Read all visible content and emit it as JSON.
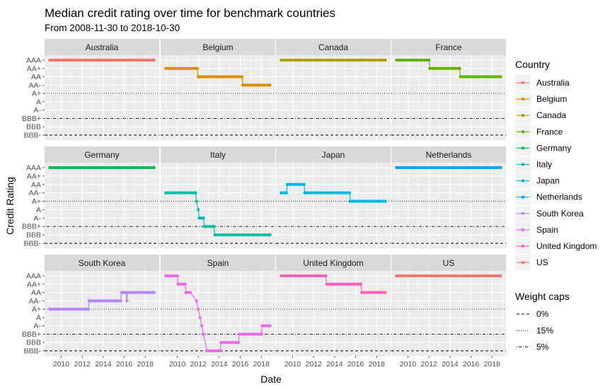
{
  "chart_data": {
    "type": "line",
    "title": "Median credit rating over time for benchmark countries",
    "subtitle": "From 2008-11-30 to 2018-10-30",
    "xlabel": "Date",
    "ylabel": "Credit Rating",
    "x_ticks": [
      "2010",
      "2012",
      "2014",
      "2016",
      "2018"
    ],
    "xlim": [
      "2008-06-01",
      "2019-05-01"
    ],
    "rating_scale": [
      "AAA",
      "AA+",
      "AA",
      "AA-",
      "A+",
      "A",
      "A-",
      "BBB+",
      "BBB",
      "BBB-"
    ],
    "reference_lines": [
      {
        "label": "0%",
        "rating": "BBB-",
        "linetype": "dashed"
      },
      {
        "label": "15%",
        "rating": "A+",
        "linetype": "dotted"
      },
      {
        "label": "5%",
        "rating": "BBB+",
        "linetype": "dotdash"
      }
    ],
    "legend": {
      "position": "right",
      "colour_title": "Country",
      "linetype_title": "Weight caps"
    },
    "series": [
      {
        "name": "Australia",
        "color": "#F8766D",
        "points": [
          [
            "2008-11-30",
            "AAA"
          ],
          [
            "2018-10-30",
            "AAA"
          ]
        ]
      },
      {
        "name": "Belgium",
        "color": "#DB8E00",
        "points": [
          [
            "2008-11-30",
            "AA+"
          ],
          [
            "2011-12-01",
            "AA+"
          ],
          [
            "2011-12-31",
            "AA"
          ],
          [
            "2016-02-28",
            "AA"
          ],
          [
            "2016-03-31",
            "AA-"
          ],
          [
            "2018-10-30",
            "AA-"
          ]
        ]
      },
      {
        "name": "Canada",
        "color": "#AEA200",
        "points": [
          [
            "2008-11-30",
            "AAA"
          ],
          [
            "2018-10-30",
            "AAA"
          ]
        ]
      },
      {
        "name": "France",
        "color": "#64B200",
        "points": [
          [
            "2008-11-30",
            "AAA"
          ],
          [
            "2011-12-31",
            "AAA"
          ],
          [
            "2012-01-31",
            "AA+"
          ],
          [
            "2014-12-01",
            "AA+"
          ],
          [
            "2014-12-31",
            "AA"
          ],
          [
            "2018-10-30",
            "AA"
          ]
        ]
      },
      {
        "name": "Germany",
        "color": "#00BD5C",
        "points": [
          [
            "2008-11-30",
            "AAA"
          ],
          [
            "2018-10-30",
            "AAA"
          ]
        ]
      },
      {
        "name": "Italy",
        "color": "#00C1A7",
        "points": [
          [
            "2008-11-30",
            "AA-"
          ],
          [
            "2011-09-30",
            "AA-"
          ],
          [
            "2011-10-31",
            "A+"
          ],
          [
            "2011-12-31",
            "A"
          ],
          [
            "2012-01-31",
            "A-"
          ],
          [
            "2012-06-30",
            "A-"
          ],
          [
            "2012-07-31",
            "BBB+"
          ],
          [
            "2013-06-30",
            "BBB+"
          ],
          [
            "2013-07-31",
            "BBB"
          ],
          [
            "2018-10-30",
            "BBB"
          ]
        ]
      },
      {
        "name": "Japan",
        "color": "#00BADE",
        "points": [
          [
            "2008-11-30",
            "AA-"
          ],
          [
            "2009-05-31",
            "AA-"
          ],
          [
            "2009-06-30",
            "AA"
          ],
          [
            "2011-01-31",
            "AA"
          ],
          [
            "2011-02-28",
            "AA-"
          ],
          [
            "2015-05-31",
            "AA-"
          ],
          [
            "2015-06-30",
            "A+"
          ],
          [
            "2018-10-30",
            "A+"
          ]
        ]
      },
      {
        "name": "Netherlands",
        "color": "#00A6FF",
        "points": [
          [
            "2008-11-30",
            "AAA"
          ],
          [
            "2018-10-30",
            "AAA"
          ]
        ]
      },
      {
        "name": "South Korea",
        "color": "#B385FF",
        "points": [
          [
            "2008-11-30",
            "A+"
          ],
          [
            "2012-07-31",
            "A+"
          ],
          [
            "2012-08-31",
            "AA-"
          ],
          [
            "2015-08-31",
            "AA-"
          ],
          [
            "2015-09-30",
            "AA"
          ],
          [
            "2016-02-28",
            "AA"
          ],
          [
            "2016-03-31",
            "AA-"
          ],
          [
            "2016-04-30",
            "AA"
          ],
          [
            "2018-10-30",
            "AA"
          ]
        ]
      },
      {
        "name": "Spain",
        "color": "#EF67EB",
        "points": [
          [
            "2008-11-30",
            "AAA"
          ],
          [
            "2009-12-31",
            "AAA"
          ],
          [
            "2010-01-31",
            "AA+"
          ],
          [
            "2010-09-30",
            "AA+"
          ],
          [
            "2010-10-31",
            "AA"
          ],
          [
            "2011-03-31",
            "AA"
          ],
          [
            "2011-10-31",
            "AA-"
          ],
          [
            "2011-12-31",
            "A+"
          ],
          [
            "2012-02-29",
            "A"
          ],
          [
            "2012-04-30",
            "A-"
          ],
          [
            "2012-06-30",
            "BBB+"
          ],
          [
            "2012-10-31",
            "BBB-"
          ],
          [
            "2014-01-31",
            "BBB-"
          ],
          [
            "2014-02-28",
            "BBB"
          ],
          [
            "2015-10-31",
            "BBB"
          ],
          [
            "2015-11-30",
            "BBB+"
          ],
          [
            "2017-12-31",
            "BBB+"
          ],
          [
            "2018-01-31",
            "A-"
          ],
          [
            "2018-10-30",
            "A-"
          ]
        ]
      },
      {
        "name": "United Kingdom",
        "color": "#FF63B6",
        "points": [
          [
            "2008-11-30",
            "AAA"
          ],
          [
            "2013-02-28",
            "AAA"
          ],
          [
            "2013-03-31",
            "AA+"
          ],
          [
            "2016-06-30",
            "AA+"
          ],
          [
            "2016-07-31",
            "AA"
          ],
          [
            "2018-10-30",
            "AA"
          ]
        ]
      },
      {
        "name": "US",
        "color": "#F8766D",
        "points": [
          [
            "2008-11-30",
            "AAA"
          ],
          [
            "2018-10-30",
            "AAA"
          ]
        ]
      }
    ]
  }
}
